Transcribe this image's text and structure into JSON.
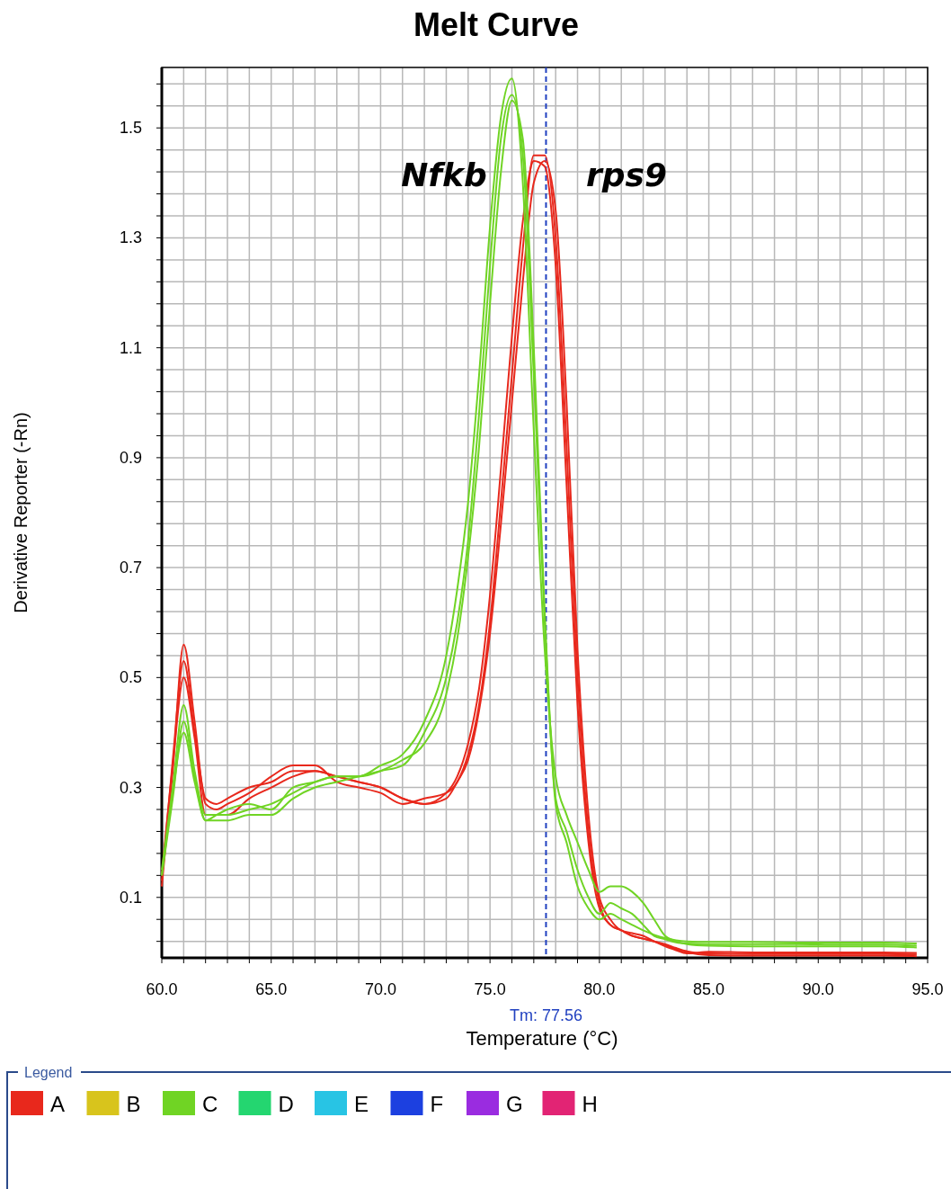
{
  "chart_data": {
    "type": "line",
    "title": "Melt Curve",
    "xlabel": "Temperature (°C)",
    "ylabel": "Derivative Reporter (-Rn)",
    "legend_title": "Legend",
    "legend": "bottom",
    "grid": true,
    "xlim": [
      60,
      95
    ],
    "ylim": [
      -0.01,
      1.61
    ],
    "xticks": [
      {
        "value": 60,
        "label": "60.0"
      },
      {
        "value": 61,
        "label": null
      },
      {
        "value": 62,
        "label": null
      },
      {
        "value": 63,
        "label": null
      },
      {
        "value": 64,
        "label": null
      },
      {
        "value": 65,
        "label": "65.0"
      },
      {
        "value": 66,
        "label": null
      },
      {
        "value": 67,
        "label": null
      },
      {
        "value": 68,
        "label": null
      },
      {
        "value": 69,
        "label": null
      },
      {
        "value": 70,
        "label": "70.0"
      },
      {
        "value": 71,
        "label": null
      },
      {
        "value": 72,
        "label": null
      },
      {
        "value": 73,
        "label": null
      },
      {
        "value": 74,
        "label": null
      },
      {
        "value": 75,
        "label": "75.0"
      },
      {
        "value": 76,
        "label": null
      },
      {
        "value": 77,
        "label": null
      },
      {
        "value": 78,
        "label": null
      },
      {
        "value": 79,
        "label": null
      },
      {
        "value": 80,
        "label": "80.0"
      },
      {
        "value": 81,
        "label": null
      },
      {
        "value": 82,
        "label": null
      },
      {
        "value": 83,
        "label": null
      },
      {
        "value": 84,
        "label": null
      },
      {
        "value": 85,
        "label": "85.0"
      },
      {
        "value": 86,
        "label": null
      },
      {
        "value": 87,
        "label": null
      },
      {
        "value": 88,
        "label": null
      },
      {
        "value": 89,
        "label": null
      },
      {
        "value": 90,
        "label": "90.0"
      },
      {
        "value": 91,
        "label": null
      },
      {
        "value": 92,
        "label": null
      },
      {
        "value": 93,
        "label": null
      },
      {
        "value": 94,
        "label": null
      },
      {
        "value": 95,
        "label": "95.0"
      }
    ],
    "yticks": [
      {
        "value": 0.02,
        "label": null
      },
      {
        "value": 0.06,
        "label": null
      },
      0.1,
      {
        "value": 0.14,
        "label": null
      },
      {
        "value": 0.18,
        "label": null
      },
      {
        "value": 0.22,
        "label": null
      },
      {
        "value": 0.26,
        "label": null
      },
      0.3,
      {
        "value": 0.34,
        "label": null
      },
      {
        "value": 0.38,
        "label": null
      },
      {
        "value": 0.42,
        "label": null
      },
      {
        "value": 0.46,
        "label": null
      },
      0.5,
      {
        "value": 0.54,
        "label": null
      },
      {
        "value": 0.58,
        "label": null
      },
      {
        "value": 0.62,
        "label": null
      },
      {
        "value": 0.66,
        "label": null
      },
      0.7,
      {
        "value": 0.74,
        "label": null
      },
      {
        "value": 0.78,
        "label": null
      },
      {
        "value": 0.82,
        "label": null
      },
      {
        "value": 0.86,
        "label": null
      },
      0.9,
      {
        "value": 0.94,
        "label": null
      },
      {
        "value": 0.98,
        "label": null
      },
      {
        "value": 1.02,
        "label": null
      },
      {
        "value": 1.06,
        "label": null
      },
      1.1,
      {
        "value": 1.14,
        "label": null
      },
      {
        "value": 1.18,
        "label": null
      },
      {
        "value": 1.22,
        "label": null
      },
      {
        "value": 1.26,
        "label": null
      },
      1.3,
      {
        "value": 1.34,
        "label": null
      },
      {
        "value": 1.38,
        "label": null
      },
      {
        "value": 1.42,
        "label": null
      },
      {
        "value": 1.46,
        "label": null
      },
      1.5,
      {
        "value": 1.54,
        "label": null
      },
      {
        "value": 1.58,
        "label": null
      }
    ],
    "x": [
      60,
      60.5,
      61,
      61.5,
      62,
      62.5,
      63,
      64,
      65,
      66,
      67,
      68,
      69,
      70,
      71,
      72,
      73,
      73.5,
      74,
      74.5,
      75,
      75.5,
      76,
      76.5,
      77,
      77.5,
      78,
      78.5,
      79,
      79.5,
      80,
      80.5,
      81,
      81.5,
      82,
      82.5,
      83,
      83.5,
      84,
      85,
      87,
      89,
      91,
      93,
      94.5
    ],
    "ref_lines": [
      {
        "axis": "x",
        "value": 77.56,
        "label": "Tm: 77.56",
        "color": "#2040c0",
        "line_style": "dashed"
      }
    ],
    "annotations": [
      "Nfkb",
      "rps9"
    ],
    "series": [
      {
        "name": "A",
        "color": "#e8281c",
        "values": [
          0.13,
          0.35,
          0.53,
          0.4,
          0.28,
          0.27,
          0.28,
          0.3,
          0.31,
          0.33,
          0.33,
          0.32,
          0.31,
          0.3,
          0.28,
          0.27,
          0.29,
          0.32,
          0.38,
          0.48,
          0.65,
          0.88,
          1.12,
          1.33,
          1.44,
          1.43,
          1.25,
          0.85,
          0.45,
          0.2,
          0.08,
          0.05,
          0.04,
          0.03,
          0.025,
          0.02,
          0.015,
          0.008,
          0.002,
          -0.002,
          -0.003,
          -0.003,
          -0.003,
          -0.003,
          -0.004
        ]
      },
      {
        "color": "#e8281c",
        "values": [
          0.12,
          0.33,
          0.56,
          0.42,
          0.27,
          0.26,
          0.27,
          0.29,
          0.32,
          0.34,
          0.34,
          0.31,
          0.3,
          0.29,
          0.27,
          0.28,
          0.29,
          0.31,
          0.36,
          0.45,
          0.6,
          0.82,
          1.05,
          1.28,
          1.45,
          1.45,
          1.3,
          0.92,
          0.5,
          0.22,
          0.09,
          0.05,
          0.04,
          0.03,
          0.025,
          0.02,
          0.013,
          0.006,
          0.0,
          -0.005,
          -0.006,
          -0.006,
          -0.006,
          -0.006,
          -0.007
        ]
      },
      {
        "color": "#e8281c",
        "values": [
          0.14,
          0.34,
          0.5,
          0.39,
          0.25,
          0.25,
          0.25,
          0.28,
          0.3,
          0.32,
          0.33,
          0.32,
          0.31,
          0.3,
          0.28,
          0.27,
          0.28,
          0.31,
          0.35,
          0.44,
          0.58,
          0.78,
          1.0,
          1.22,
          1.4,
          1.44,
          1.35,
          1.0,
          0.55,
          0.25,
          0.1,
          0.06,
          0.04,
          0.035,
          0.03,
          0.02,
          0.011,
          0.004,
          -0.002,
          0.001,
          0.0,
          0.0,
          0.0,
          0.0,
          -0.001
        ]
      },
      {
        "name": "B",
        "color": "#d8c41c",
        "values": [
          null,
          null,
          null,
          null,
          null,
          null,
          null,
          null,
          null,
          null,
          null,
          null,
          null,
          null,
          null,
          null,
          null,
          null,
          null,
          null,
          null,
          null,
          null,
          null,
          null,
          null,
          null,
          null,
          null,
          null,
          null,
          null,
          null,
          null,
          null,
          null,
          null,
          null,
          null,
          null,
          null,
          null,
          null,
          null,
          null
        ]
      },
      {
        "name": "C",
        "color": "#70d424",
        "values": [
          0.15,
          0.3,
          0.45,
          0.33,
          0.25,
          0.25,
          0.25,
          0.26,
          0.27,
          0.29,
          0.31,
          0.32,
          0.32,
          0.34,
          0.36,
          0.42,
          0.54,
          0.66,
          0.82,
          1.05,
          1.32,
          1.52,
          1.59,
          1.4,
          0.95,
          0.55,
          0.32,
          0.25,
          0.2,
          0.15,
          0.11,
          0.12,
          0.12,
          0.11,
          0.09,
          0.06,
          0.03,
          0.02,
          0.015,
          0.012,
          0.011,
          0.011,
          0.011,
          0.011,
          0.009
        ]
      },
      {
        "color": "#70d424",
        "values": [
          0.14,
          0.28,
          0.42,
          0.32,
          0.24,
          0.24,
          0.24,
          0.25,
          0.25,
          0.28,
          0.3,
          0.31,
          0.32,
          0.33,
          0.34,
          0.4,
          0.5,
          0.6,
          0.75,
          0.98,
          1.25,
          1.48,
          1.56,
          1.45,
          1.05,
          0.6,
          0.28,
          0.22,
          0.15,
          0.1,
          0.07,
          0.09,
          0.08,
          0.07,
          0.05,
          0.03,
          0.024,
          0.018,
          0.016,
          0.015,
          0.015,
          0.015,
          0.014,
          0.014,
          0.012
        ]
      },
      {
        "color": "#70d424",
        "values": [
          0.14,
          0.29,
          0.4,
          0.31,
          0.24,
          0.25,
          0.26,
          0.27,
          0.26,
          0.3,
          0.31,
          0.32,
          0.32,
          0.33,
          0.35,
          0.38,
          0.47,
          0.57,
          0.72,
          0.92,
          1.18,
          1.42,
          1.55,
          1.48,
          1.1,
          0.62,
          0.27,
          0.2,
          0.12,
          0.08,
          0.06,
          0.07,
          0.06,
          0.05,
          0.04,
          0.032,
          0.026,
          0.022,
          0.02,
          0.019,
          0.019,
          0.018,
          0.018,
          0.018,
          0.016
        ]
      },
      {
        "name": "D",
        "color": "#24d670",
        "values": [
          null,
          null,
          null,
          null,
          null,
          null,
          null,
          null,
          null,
          null,
          null,
          null,
          null,
          null,
          null,
          null,
          null,
          null,
          null,
          null,
          null,
          null,
          null,
          null,
          null,
          null,
          null,
          null,
          null,
          null,
          null,
          null,
          null,
          null,
          null,
          null,
          null,
          null,
          null,
          null,
          null,
          null,
          null,
          null,
          null
        ]
      },
      {
        "name": "E",
        "color": "#28c4e4",
        "values": [
          null,
          null,
          null,
          null,
          null,
          null,
          null,
          null,
          null,
          null,
          null,
          null,
          null,
          null,
          null,
          null,
          null,
          null,
          null,
          null,
          null,
          null,
          null,
          null,
          null,
          null,
          null,
          null,
          null,
          null,
          null,
          null,
          null,
          null,
          null,
          null,
          null,
          null,
          null,
          null,
          null,
          null,
          null,
          null,
          null
        ]
      },
      {
        "name": "F",
        "color": "#1c40e0",
        "values": [
          null,
          null,
          null,
          null,
          null,
          null,
          null,
          null,
          null,
          null,
          null,
          null,
          null,
          null,
          null,
          null,
          null,
          null,
          null,
          null,
          null,
          null,
          null,
          null,
          null,
          null,
          null,
          null,
          null,
          null,
          null,
          null,
          null,
          null,
          null,
          null,
          null,
          null,
          null,
          null,
          null,
          null,
          null,
          null,
          null
        ]
      },
      {
        "name": "G",
        "color": "#9a2ce0",
        "values": [
          null,
          null,
          null,
          null,
          null,
          null,
          null,
          null,
          null,
          null,
          null,
          null,
          null,
          null,
          null,
          null,
          null,
          null,
          null,
          null,
          null,
          null,
          null,
          null,
          null,
          null,
          null,
          null,
          null,
          null,
          null,
          null,
          null,
          null,
          null,
          null,
          null,
          null,
          null,
          null,
          null,
          null,
          null,
          null,
          null
        ]
      },
      {
        "name": "H",
        "color": "#e22474",
        "values": [
          null,
          null,
          null,
          null,
          null,
          null,
          null,
          null,
          null,
          null,
          null,
          null,
          null,
          null,
          null,
          null,
          null,
          null,
          null,
          null,
          null,
          null,
          null,
          null,
          null,
          null,
          null,
          null,
          null,
          null,
          null,
          null,
          null,
          null,
          null,
          null,
          null,
          null,
          null,
          null,
          null,
          null,
          null,
          null,
          null
        ]
      }
    ]
  }
}
